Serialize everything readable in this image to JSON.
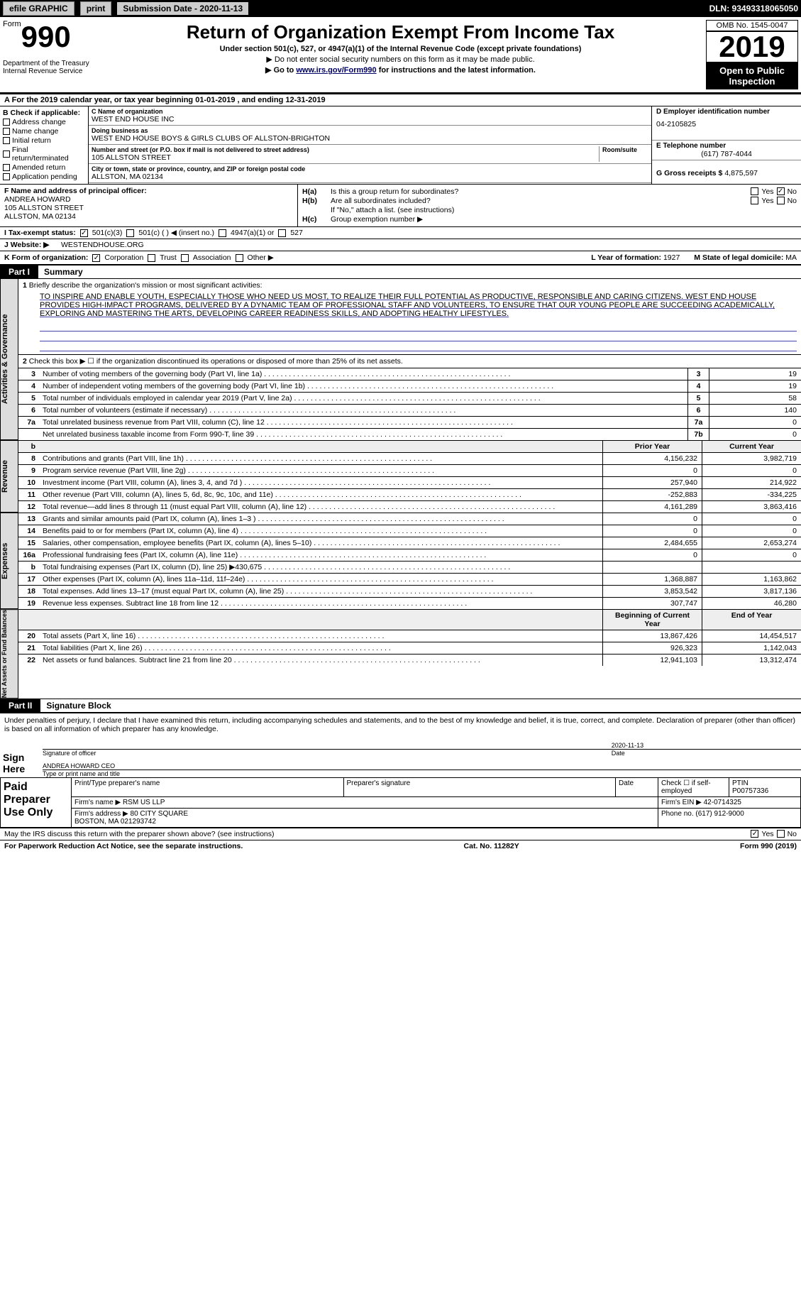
{
  "topbar": {
    "efile": "efile GRAPHIC",
    "print": "print",
    "subdate_lbl": "Submission Date - ",
    "subdate": "2020-11-13",
    "dln": "DLN: 93493318065050"
  },
  "header": {
    "form": "Form",
    "num": "990",
    "dept": "Department of the Treasury\nInternal Revenue Service",
    "title": "Return of Organization Exempt From Income Tax",
    "sub1": "Under section 501(c), 527, or 4947(a)(1) of the Internal Revenue Code (except private foundations)",
    "sub2": "▶ Do not enter social security numbers on this form as it may be made public.",
    "sub3a": "▶ Go to ",
    "sub3link": "www.irs.gov/Form990",
    "sub3b": " for instructions and the latest information.",
    "omb": "OMB No. 1545-0047",
    "year": "2019",
    "open": "Open to Public Inspection"
  },
  "rowA": "For the 2019 calendar year, or tax year beginning 01-01-2019    , and ending 12-31-2019",
  "colB": {
    "hdr": "B Check if applicable:",
    "items": [
      "Address change",
      "Name change",
      "Initial return",
      "Final return/terminated",
      "Amended return",
      "Application pending"
    ]
  },
  "orgname_lbl": "C Name of organization",
  "orgname": "WEST END HOUSE INC",
  "dba_lbl": "Doing business as",
  "dba": "WEST END HOUSE BOYS & GIRLS CLUBS OF ALLSTON-BRIGHTON",
  "addr_lbl": "Number and street (or P.O. box if mail is not delivered to street address)",
  "addr": "105 ALLSTON STREET",
  "room_lbl": "Room/suite",
  "city_lbl": "City or town, state or province, country, and ZIP or foreign postal code",
  "city": "ALLSTON, MA  02134",
  "ein_lbl": "D Employer identification number",
  "ein": "04-2105825",
  "tel_lbl": "E Telephone number",
  "tel": "(617) 787-4044",
  "gross_lbl": "G Gross receipts $",
  "gross": "4,875,597",
  "officer_lbl": "F  Name and address of principal officer:",
  "officer_name": "ANDREA HOWARD",
  "officer_addr1": "105 ALLSTON STREET",
  "officer_addr2": "ALLSTON, MA  02134",
  "h_a": "Is this a group return for subordinates?",
  "h_b": "Are all subordinates included?",
  "h_note": "If \"No,\" attach a list. (see instructions)",
  "h_c": "Group exemption number ▶",
  "yes": "Yes",
  "no": "No",
  "status_lbl": "I  Tax-exempt status:",
  "s501c3": "501(c)(3)",
  "s501c": "501(c) (   ) ◀ (insert no.)",
  "s4947": "4947(a)(1) or",
  "s527": "527",
  "website_lbl": "J  Website: ▶",
  "website": "WESTENDHOUSE.ORG",
  "k_lbl": "K Form of organization:",
  "k_corp": "Corporation",
  "k_trust": "Trust",
  "k_assoc": "Association",
  "k_other": "Other ▶",
  "l_lbl": "L Year of formation:",
  "l_val": "1927",
  "m_lbl": "M State of legal domicile:",
  "m_val": "MA",
  "part1": "Part I",
  "part1_title": "Summary",
  "side1": "Activities & Governance",
  "side2": "Revenue",
  "side3": "Expenses",
  "side4": "Net Assets or Fund Balances",
  "line1": "Briefly describe the organization's mission or most significant activities:",
  "mission": "TO INSPIRE AND ENABLE YOUTH, ESPECIALLY THOSE WHO NEED US MOST, TO REALIZE THEIR FULL POTENTIAL AS PRODUCTIVE, RESPONSIBLE AND CARING CITIZENS. WEST END HOUSE PROVIDES HIGH-IMPACT PROGRAMS, DELIVERED BY A DYNAMIC TEAM OF PROFESSIONAL STAFF AND VOLUNTEERS, TO ENSURE THAT OUR YOUNG PEOPLE ARE SUCCEEDING ACADEMICALLY, EXPLORING AND MASTERING THE ARTS, DEVELOPING CAREER READINESS SKILLS, AND ADOPTING HEALTHY LIFESTYLES.",
  "line2": "Check this box ▶ ☐ if the organization discontinued its operations or disposed of more than 25% of its net assets.",
  "rows_gov": [
    {
      "n": "3",
      "d": "Number of voting members of the governing body (Part VI, line 1a)",
      "c": "3",
      "v": "19"
    },
    {
      "n": "4",
      "d": "Number of independent voting members of the governing body (Part VI, line 1b)",
      "c": "4",
      "v": "19"
    },
    {
      "n": "5",
      "d": "Total number of individuals employed in calendar year 2019 (Part V, line 2a)",
      "c": "5",
      "v": "58"
    },
    {
      "n": "6",
      "d": "Total number of volunteers (estimate if necessary)",
      "c": "6",
      "v": "140"
    },
    {
      "n": "7a",
      "d": "Total unrelated business revenue from Part VIII, column (C), line 12",
      "c": "7a",
      "v": "0"
    },
    {
      "n": "",
      "d": "Net unrelated business taxable income from Form 990-T, line 39",
      "c": "7b",
      "v": "0"
    }
  ],
  "colhdr": {
    "b": "b",
    "prior": "Prior Year",
    "curr": "Current Year",
    "beg": "Beginning of Current Year",
    "end": "End of Year"
  },
  "rows_rev": [
    {
      "n": "8",
      "d": "Contributions and grants (Part VIII, line 1h)",
      "p": "4,156,232",
      "c": "3,982,719"
    },
    {
      "n": "9",
      "d": "Program service revenue (Part VIII, line 2g)",
      "p": "0",
      "c": "0"
    },
    {
      "n": "10",
      "d": "Investment income (Part VIII, column (A), lines 3, 4, and 7d )",
      "p": "257,940",
      "c": "214,922"
    },
    {
      "n": "11",
      "d": "Other revenue (Part VIII, column (A), lines 5, 6d, 8c, 9c, 10c, and 11e)",
      "p": "-252,883",
      "c": "-334,225"
    },
    {
      "n": "12",
      "d": "Total revenue—add lines 8 through 11 (must equal Part VIII, column (A), line 12)",
      "p": "4,161,289",
      "c": "3,863,416"
    }
  ],
  "rows_exp": [
    {
      "n": "13",
      "d": "Grants and similar amounts paid (Part IX, column (A), lines 1–3 )",
      "p": "0",
      "c": "0"
    },
    {
      "n": "14",
      "d": "Benefits paid to or for members (Part IX, column (A), line 4)",
      "p": "0",
      "c": "0"
    },
    {
      "n": "15",
      "d": "Salaries, other compensation, employee benefits (Part IX, column (A), lines 5–10)",
      "p": "2,484,655",
      "c": "2,653,274"
    },
    {
      "n": "16a",
      "d": "Professional fundraising fees (Part IX, column (A), line 11e)",
      "p": "0",
      "c": "0"
    },
    {
      "n": "b",
      "d": "Total fundraising expenses (Part IX, column (D), line 25) ▶430,675",
      "p": "",
      "c": ""
    },
    {
      "n": "17",
      "d": "Other expenses (Part IX, column (A), lines 11a–11d, 11f–24e)",
      "p": "1,368,887",
      "c": "1,163,862"
    },
    {
      "n": "18",
      "d": "Total expenses. Add lines 13–17 (must equal Part IX, column (A), line 25)",
      "p": "3,853,542",
      "c": "3,817,136"
    },
    {
      "n": "19",
      "d": "Revenue less expenses. Subtract line 18 from line 12",
      "p": "307,747",
      "c": "46,280"
    }
  ],
  "rows_net": [
    {
      "n": "20",
      "d": "Total assets (Part X, line 16)",
      "p": "13,867,426",
      "c": "14,454,517"
    },
    {
      "n": "21",
      "d": "Total liabilities (Part X, line 26)",
      "p": "926,323",
      "c": "1,142,043"
    },
    {
      "n": "22",
      "d": "Net assets or fund balances. Subtract line 21 from line 20",
      "p": "12,941,103",
      "c": "13,312,474"
    }
  ],
  "part2": "Part II",
  "part2_title": "Signature Block",
  "perjury": "Under penalties of perjury, I declare that I have examined this return, including accompanying schedules and statements, and to the best of my knowledge and belief, it is true, correct, and complete. Declaration of preparer (other than officer) is based on all information of which preparer has any knowledge.",
  "signhere": "Sign Here",
  "sigoff": "Signature of officer",
  "sigdate": "Date",
  "sigdate_val": "2020-11-13",
  "signame_val": "ANDREA HOWARD CEO",
  "signame_lbl": "Type or print name and title",
  "paid": "Paid Preparer Use Only",
  "prep": {
    "r1": {
      "c1": "Print/Type preparer's name",
      "c2": "Preparer's signature",
      "c3": "Date",
      "c4": "Check ☐ if self-employed",
      "c5": "PTIN\nP00757336"
    },
    "firm_lbl": "Firm's name  ▶",
    "firm": "RSM US LLP",
    "ein_lbl": "Firm's EIN ▶",
    "ein": "42-0714325",
    "addr_lbl": "Firm's address ▶",
    "addr": "80 CITY SQUARE\nBOSTON, MA  021293742",
    "phone_lbl": "Phone no.",
    "phone": "(617) 912-9000"
  },
  "discuss": "May the IRS discuss this return with the preparer shown above? (see instructions)",
  "footer": {
    "l": "For Paperwork Reduction Act Notice, see the separate instructions.",
    "c": "Cat. No. 11282Y",
    "r": "Form 990 (2019)"
  }
}
